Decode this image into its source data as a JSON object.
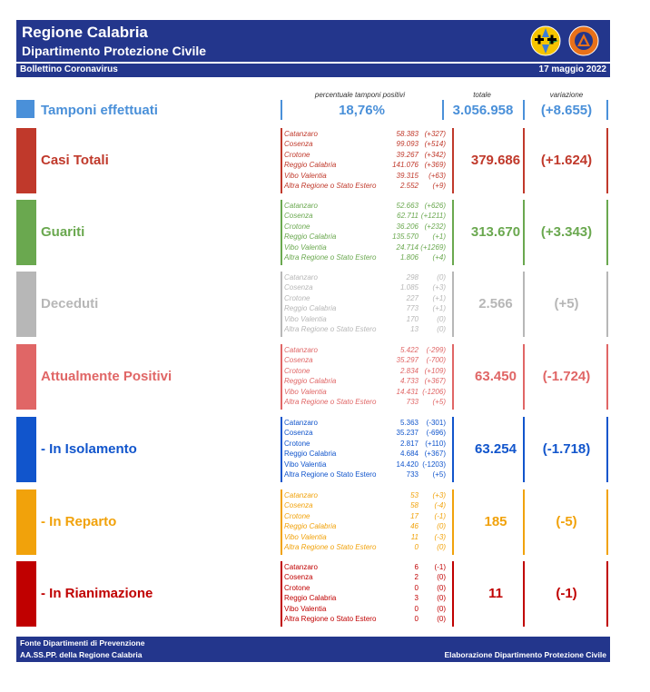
{
  "header": {
    "title": "Regione Calabria",
    "subtitle": "Dipartimento Protezione Civile",
    "bulletin": "Bollettino Coronavirus",
    "date": "17 maggio 2022"
  },
  "columns": {
    "perc": "percentuale tamponi positivi",
    "total": "totale",
    "var": "variazione"
  },
  "tamponi": {
    "label": "Tamponi effettuati",
    "perc": "18,76%",
    "total": "3.056.958",
    "var": "(+8.655)",
    "color": "#4a90d9"
  },
  "sections": [
    {
      "label": "Casi Totali",
      "color": "#c0392b",
      "total": "379.686",
      "var": "(+1.624)",
      "rows": [
        {
          "name": "Catanzaro",
          "value": "58.383",
          "delta": "(+327)"
        },
        {
          "name": "Cosenza",
          "value": "99.093",
          "delta": "(+514)"
        },
        {
          "name": "Crotone",
          "value": "39.267",
          "delta": "(+342)"
        },
        {
          "name": "Reggio Calabria",
          "value": "141.076",
          "delta": "(+369)"
        },
        {
          "name": "Vibo Valentia",
          "value": "39.315",
          "delta": "(+63)"
        },
        {
          "name": "Altra Regione o Stato Estero",
          "value": "2.552",
          "delta": "(+9)"
        }
      ]
    },
    {
      "label": "Guariti",
      "color": "#6aa84f",
      "total": "313.670",
      "var": "(+3.343)",
      "rows": [
        {
          "name": "Catanzaro",
          "value": "52.663",
          "delta": "(+626)"
        },
        {
          "name": "Cosenza",
          "value": "62.711",
          "delta": "(+1211)"
        },
        {
          "name": "Crotone",
          "value": "36.206",
          "delta": "(+232)"
        },
        {
          "name": "Reggio Calabria",
          "value": "135.570",
          "delta": "(+1)"
        },
        {
          "name": "Vibo Valentia",
          "value": "24.714",
          "delta": "(+1269)"
        },
        {
          "name": "Altra Regione o Stato Estero",
          "value": "1.806",
          "delta": "(+4)"
        }
      ]
    },
    {
      "label": "Deceduti",
      "color": "#b7b7b7",
      "total": "2.566",
      "var": "(+5)",
      "rows": [
        {
          "name": "Catanzaro",
          "value": "298",
          "delta": "(0)"
        },
        {
          "name": "Cosenza",
          "value": "1.085",
          "delta": "(+3)"
        },
        {
          "name": "Crotone",
          "value": "227",
          "delta": "(+1)"
        },
        {
          "name": "Reggio Calabria",
          "value": "773",
          "delta": "(+1)"
        },
        {
          "name": "Vibo Valentia",
          "value": "170",
          "delta": "(0)"
        },
        {
          "name": "Altra Regione o Stato Estero",
          "value": "13",
          "delta": "(0)"
        }
      ]
    },
    {
      "label": "Attualmente Positivi",
      "color": "#e06666",
      "total": "63.450",
      "var": "(-1.724)",
      "rows": [
        {
          "name": "Catanzaro",
          "value": "5.422",
          "delta": "(-299)"
        },
        {
          "name": "Cosenza",
          "value": "35.297",
          "delta": "(-700)"
        },
        {
          "name": "Crotone",
          "value": "2.834",
          "delta": "(+109)"
        },
        {
          "name": "Reggio Calabria",
          "value": "4.733",
          "delta": "(+367)"
        },
        {
          "name": "Vibo Valentia",
          "value": "14.431",
          "delta": "(-1206)"
        },
        {
          "name": "Altra Regione o Stato Estero",
          "value": "733",
          "delta": "(+5)"
        }
      ]
    },
    {
      "label": "- In Isolamento",
      "color": "#1155cc",
      "total": "63.254",
      "var": "(-1.718)",
      "rows": [
        {
          "name": "Catanzaro",
          "value": "5.363",
          "delta": "(-301)"
        },
        {
          "name": "Cosenza",
          "value": "35.237",
          "delta": "(-696)"
        },
        {
          "name": "Crotone",
          "value": "2.817",
          "delta": "(+110)"
        },
        {
          "name": "Reggio Calabria",
          "value": "4.684",
          "delta": "(+367)"
        },
        {
          "name": "Vibo Valentia",
          "value": "14.420",
          "delta": "(-1203)"
        },
        {
          "name": "Altra Regione o Stato Estero",
          "value": "733",
          "delta": "(+5)"
        }
      ]
    },
    {
      "label": "- In Reparto",
      "color": "#f1a20b",
      "total": "185",
      "var": "(-5)",
      "rows": [
        {
          "name": "Catanzaro",
          "value": "53",
          "delta": "(+3)"
        },
        {
          "name": "Cosenza",
          "value": "58",
          "delta": "(-4)"
        },
        {
          "name": "Crotone",
          "value": "17",
          "delta": "(-1)"
        },
        {
          "name": "Reggio Calabria",
          "value": "46",
          "delta": "(0)"
        },
        {
          "name": "Vibo Valentia",
          "value": "11",
          "delta": "(-3)"
        },
        {
          "name": "Altra Regione o Stato Estero",
          "value": "0",
          "delta": "(0)"
        }
      ]
    },
    {
      "label": "- In Rianimazione",
      "color": "#c00000",
      "total": "11",
      "var": "(-1)",
      "rows": [
        {
          "name": "Catanzaro",
          "value": "6",
          "delta": "(-1)"
        },
        {
          "name": "Cosenza",
          "value": "2",
          "delta": "(0)"
        },
        {
          "name": "Crotone",
          "value": "0",
          "delta": "(0)"
        },
        {
          "name": "Reggio Calabria",
          "value": "3",
          "delta": "(0)"
        },
        {
          "name": "Vibo Valentia",
          "value": "0",
          "delta": "(0)"
        },
        {
          "name": "Altra Regione o Stato Estero",
          "value": "0",
          "delta": "(0)"
        }
      ]
    }
  ],
  "footer": {
    "line1": "Fonte Dipartimenti di Prevenzione",
    "line2": "AA.SS.PP.  della Regione Calabria",
    "right": "Elaborazione Dipartimento Protezione Civile"
  }
}
